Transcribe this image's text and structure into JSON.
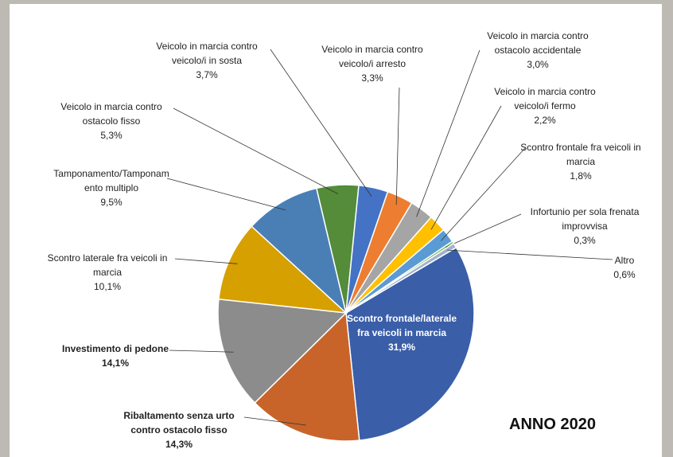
{
  "chart_data": {
    "type": "pie",
    "title": "ANNO 2020",
    "categories": [
      "Scontro frontale/laterale fra veicoli in marcia",
      "Ribaltamento senza urto contro ostacolo fisso",
      "Investimento di pedone",
      "Scontro laterale fra veicoli in marcia",
      "Tamponamento/Tamponamento multiplo",
      "Veicolo in marcia contro ostacolo fisso",
      "Veicolo in marcia contro veicolo/i in sosta",
      "Veicolo in marcia contro veicolo/i arresto",
      "Veicolo in marcia contro ostacolo accidentale",
      "Veicolo in marcia contro veicolo/i fermo",
      "Scontro frontale fra veicoli in marcia",
      "Infortunio per sola frenata improvvisa",
      "Altro"
    ],
    "values": [
      31.9,
      14.3,
      14.1,
      10.1,
      9.5,
      5.3,
      3.7,
      3.3,
      3.0,
      2.2,
      1.8,
      0.3,
      0.6
    ],
    "value_labels": [
      "31,9%",
      "14,3%",
      "14,1%",
      "10,1%",
      "9,5%",
      "5,3%",
      "3,7%",
      "3,3%",
      "3,0%",
      "2,2%",
      "1,8%",
      "0,3%",
      "0,6%"
    ],
    "colors": [
      "#3a5ea8",
      "#c8642a",
      "#8c8c8c",
      "#d6a000",
      "#4a7fb5",
      "#548c3a",
      "#4472c4",
      "#ed7d31",
      "#a5a5a5",
      "#ffc000",
      "#5b9bd5",
      "#70ad47",
      "#9fb4d0"
    ]
  }
}
